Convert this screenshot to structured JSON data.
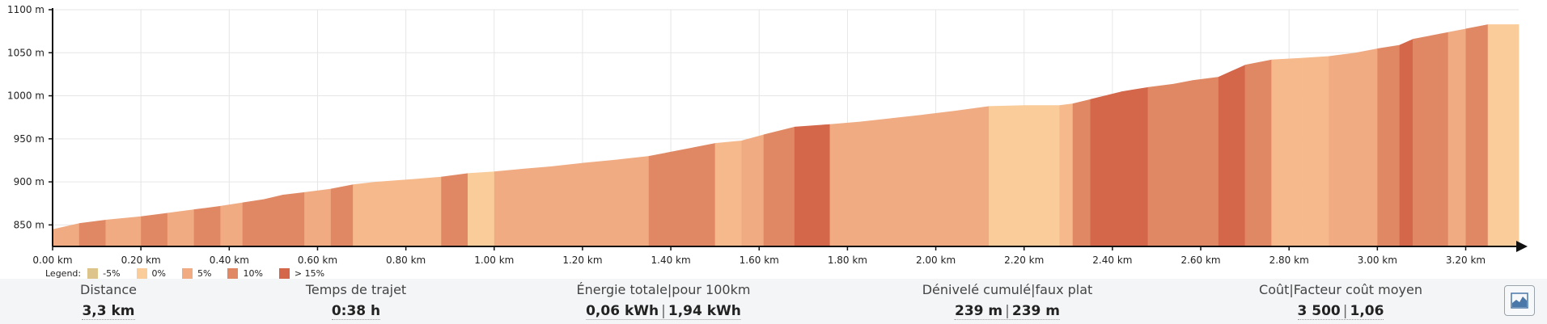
{
  "chart_data": {
    "type": "area",
    "xlabel": "",
    "ylabel": "",
    "xlim": [
      0,
      3.32
    ],
    "ylim": [
      825,
      1100
    ],
    "x_tick_values": [
      0,
      0.2,
      0.4,
      0.6,
      0.8,
      1.0,
      1.2,
      1.4,
      1.6,
      1.8,
      2.0,
      2.2,
      2.4,
      2.6,
      2.8,
      3.0,
      3.2
    ],
    "x_ticks": [
      "0.00 km",
      "0.20 km",
      "0.40 km",
      "0.60 km",
      "0.80 km",
      "1.00 km",
      "1.20 km",
      "1.40 km",
      "1.60 km",
      "1.80 km",
      "2.00 km",
      "2.20 km",
      "2.40 km",
      "2.60 km",
      "2.80 km",
      "3.00 km",
      "3.20 km"
    ],
    "y_tick_values": [
      850,
      900,
      950,
      1000,
      1050,
      1100
    ],
    "y_ticks": [
      "850 m",
      "900 m",
      "950 m",
      "1000 m",
      "1050 m",
      "1100 m"
    ],
    "grid": true,
    "legend_position": "bottom-left",
    "legend": [
      {
        "label": "-5%",
        "color": "#dcc48a"
      },
      {
        "label": "0%",
        "color": "#f9cc9a"
      },
      {
        "label": "5%",
        "color": "#f0ab82"
      },
      {
        "label": "10%",
        "color": "#e08864"
      },
      {
        "label": "> 15%",
        "color": "#d4664a"
      }
    ],
    "points": [
      {
        "x": 0.0,
        "y": 845
      },
      {
        "x": 0.06,
        "y": 852
      },
      {
        "x": 0.12,
        "y": 856
      },
      {
        "x": 0.2,
        "y": 860
      },
      {
        "x": 0.26,
        "y": 864
      },
      {
        "x": 0.32,
        "y": 868
      },
      {
        "x": 0.38,
        "y": 872
      },
      {
        "x": 0.43,
        "y": 876
      },
      {
        "x": 0.48,
        "y": 880
      },
      {
        "x": 0.52,
        "y": 885
      },
      {
        "x": 0.57,
        "y": 888
      },
      {
        "x": 0.63,
        "y": 892
      },
      {
        "x": 0.68,
        "y": 897
      },
      {
        "x": 0.73,
        "y": 900
      },
      {
        "x": 0.81,
        "y": 903
      },
      {
        "x": 0.88,
        "y": 906
      },
      {
        "x": 0.94,
        "y": 910
      },
      {
        "x": 1.0,
        "y": 912
      },
      {
        "x": 1.06,
        "y": 915
      },
      {
        "x": 1.13,
        "y": 918
      },
      {
        "x": 1.2,
        "y": 922
      },
      {
        "x": 1.28,
        "y": 926
      },
      {
        "x": 1.35,
        "y": 930
      },
      {
        "x": 1.39,
        "y": 934
      },
      {
        "x": 1.45,
        "y": 940
      },
      {
        "x": 1.5,
        "y": 945
      },
      {
        "x": 1.56,
        "y": 948
      },
      {
        "x": 1.61,
        "y": 955
      },
      {
        "x": 1.68,
        "y": 964
      },
      {
        "x": 1.76,
        "y": 967
      },
      {
        "x": 1.83,
        "y": 970
      },
      {
        "x": 1.9,
        "y": 974
      },
      {
        "x": 1.97,
        "y": 978
      },
      {
        "x": 2.05,
        "y": 983
      },
      {
        "x": 2.12,
        "y": 988
      },
      {
        "x": 2.2,
        "y": 989
      },
      {
        "x": 2.28,
        "y": 989
      },
      {
        "x": 2.31,
        "y": 991
      },
      {
        "x": 2.35,
        "y": 996
      },
      {
        "x": 2.42,
        "y": 1005
      },
      {
        "x": 2.48,
        "y": 1010
      },
      {
        "x": 2.54,
        "y": 1014
      },
      {
        "x": 2.58,
        "y": 1018
      },
      {
        "x": 2.64,
        "y": 1022
      },
      {
        "x": 2.7,
        "y": 1036
      },
      {
        "x": 2.76,
        "y": 1042
      },
      {
        "x": 2.83,
        "y": 1044
      },
      {
        "x": 2.89,
        "y": 1046
      },
      {
        "x": 2.95,
        "y": 1050
      },
      {
        "x": 3.0,
        "y": 1055
      },
      {
        "x": 3.05,
        "y": 1059
      },
      {
        "x": 3.08,
        "y": 1066
      },
      {
        "x": 3.12,
        "y": 1070
      },
      {
        "x": 3.16,
        "y": 1074
      },
      {
        "x": 3.2,
        "y": 1078
      },
      {
        "x": 3.25,
        "y": 1083
      },
      {
        "x": 3.32,
        "y": 1083
      }
    ],
    "segment_colors": [
      "#f0ab82",
      "#e08864",
      "#f0ab82",
      "#e08864",
      "#f0ab82",
      "#e08864",
      "#f0ab82",
      "#e08864",
      "#e08864",
      "#e08864",
      "#f0ab82",
      "#e08864",
      "#f6b98c",
      "#f6b98c",
      "#f6b98c",
      "#e08864",
      "#f9cc9a",
      "#f0ab82",
      "#f0ab82",
      "#f0ab82",
      "#f0ab82",
      "#f0ab82",
      "#e08864",
      "#e08864",
      "#e08864",
      "#f6b98c",
      "#f0ab82",
      "#e08864",
      "#d4664a",
      "#f0ab82",
      "#f0ab82",
      "#f0ab82",
      "#f0ab82",
      "#f0ab82",
      "#f9cc9a",
      "#f9cc9a",
      "#f6b98c",
      "#e08864",
      "#d4664a",
      "#d4664a",
      "#e08864",
      "#e08864",
      "#e08864",
      "#d4664a",
      "#e08864",
      "#f6b98c",
      "#f6b98c",
      "#f0ab82",
      "#f0ab82",
      "#e08864",
      "#d4664a",
      "#e08864",
      "#e08864",
      "#f0ab82",
      "#e08864",
      "#f9cc9a"
    ]
  },
  "legend_title": "Legend:",
  "stats": [
    {
      "label": "Distance",
      "value": "3,3 km"
    },
    {
      "label": "Temps de trajet",
      "value": "0:38 h"
    },
    {
      "label": "Énergie totale|pour 100km",
      "value": "0,06 kWh",
      "value2": "1,94 kWh"
    },
    {
      "label": "Dénivelé cumulé|faux plat",
      "value": "239 m",
      "value2": "239 m"
    },
    {
      "label": "Coût|Facteur coût moyen",
      "value": "3 500",
      "value2": "1,06"
    }
  ],
  "profile_button_icon": "elevation-profile-icon"
}
